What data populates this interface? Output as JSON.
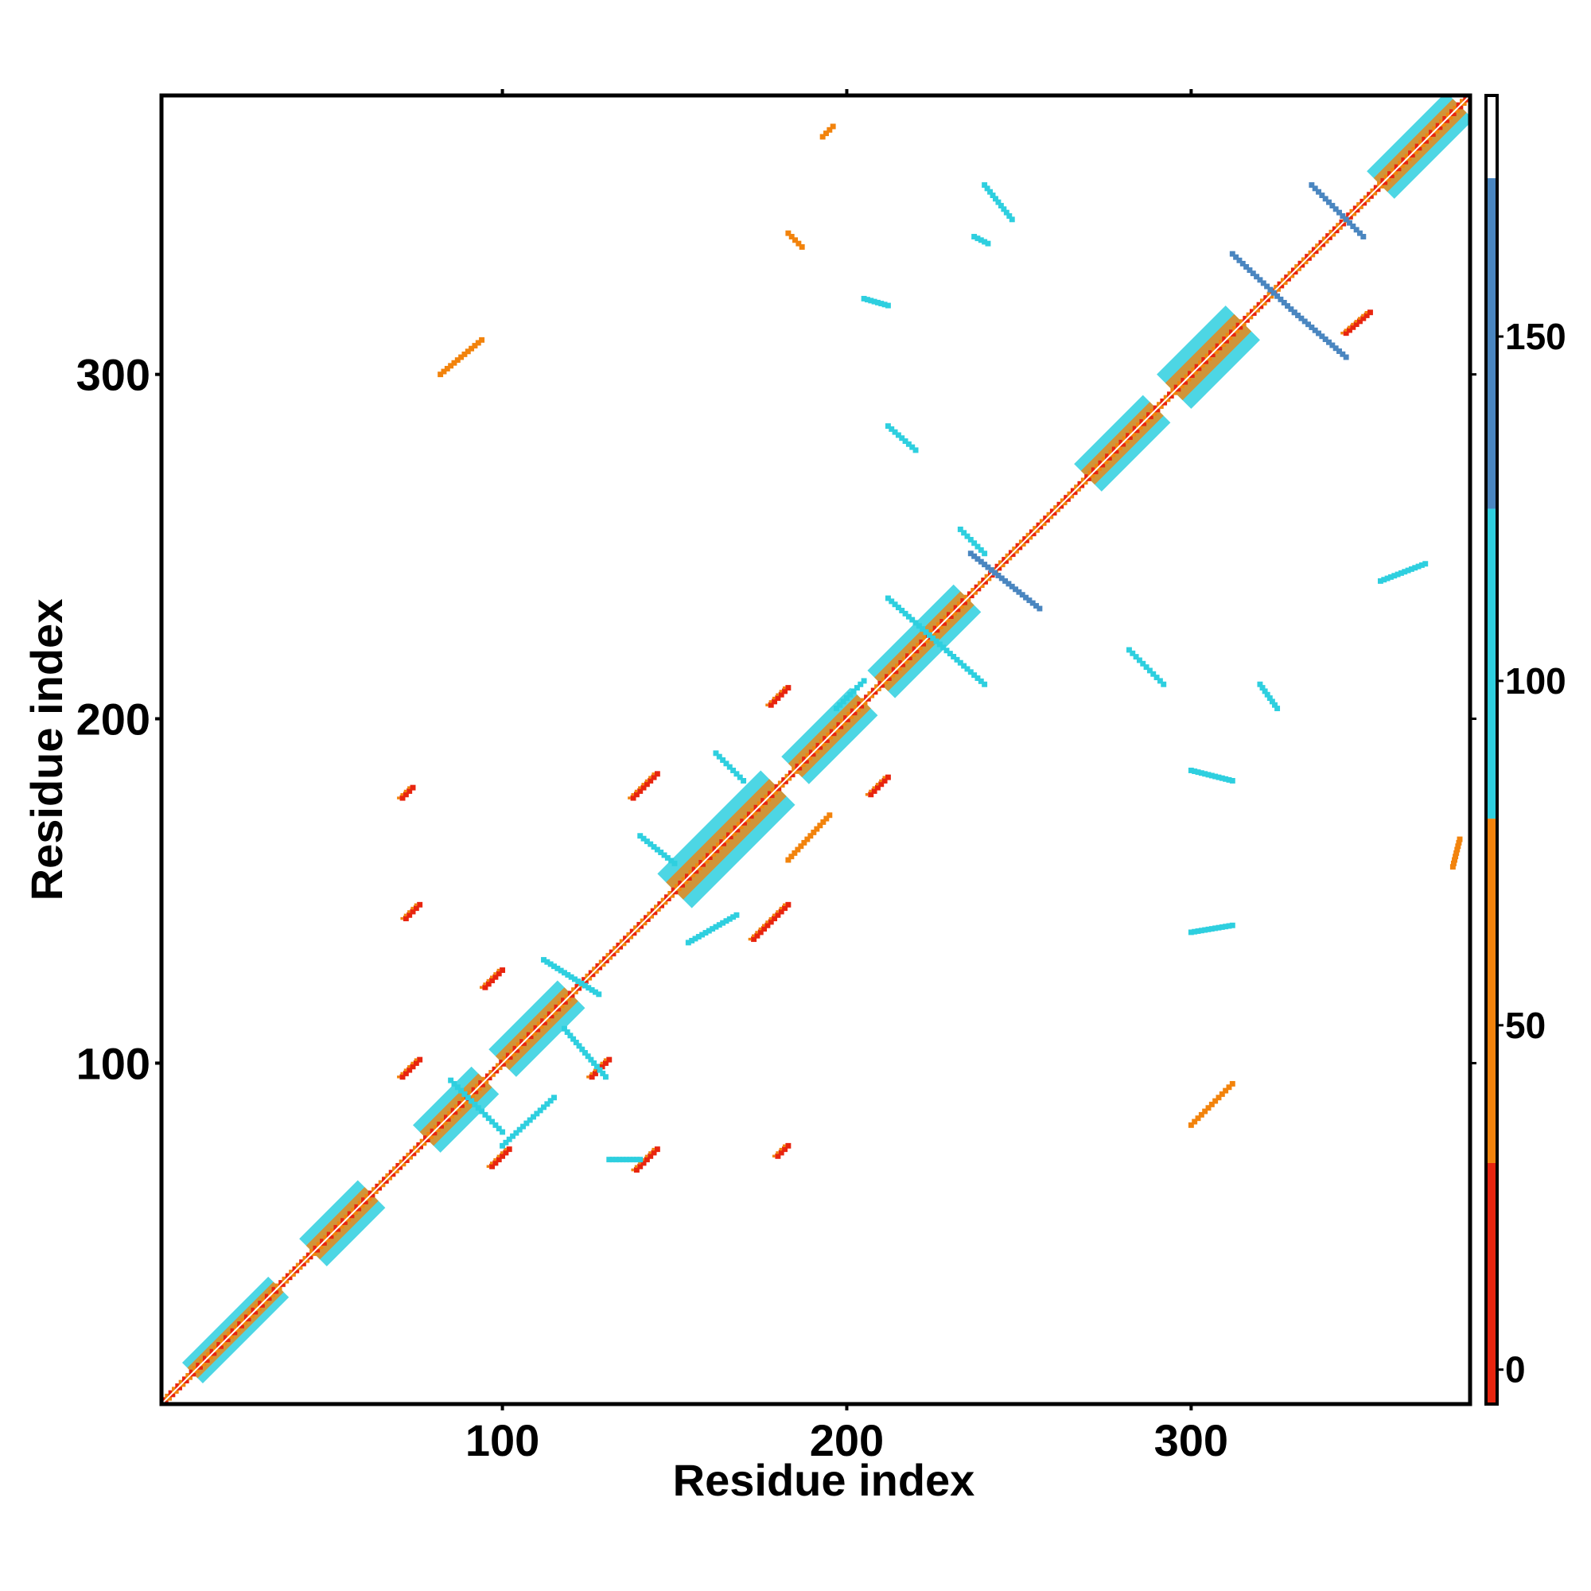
{
  "chart_data": {
    "type": "heatmap",
    "title": "",
    "xlabel": "Residue index",
    "ylabel": "Residue index",
    "xlim": [
      1,
      381
    ],
    "ylim": [
      1,
      381
    ],
    "x_ticks": [
      "100",
      "200",
      "300"
    ],
    "y_ticks": [
      "100",
      "200",
      "300"
    ],
    "x_tick_values": [
      100,
      200,
      300
    ],
    "y_tick_values": [
      100,
      200,
      300
    ],
    "colorbar": {
      "range": [
        -5,
        185
      ],
      "ticks": [
        "0",
        "50",
        "100",
        "150"
      ],
      "tick_values": [
        0,
        50,
        100,
        150
      ],
      "bands": [
        {
          "from": -5,
          "to": 30,
          "color": "#e8250f"
        },
        {
          "from": 30,
          "to": 80,
          "color": "#f2830c"
        },
        {
          "from": 80,
          "to": 125,
          "color": "#2ecfdf"
        },
        {
          "from": 125,
          "to": 173,
          "color": "#4a86c0"
        },
        {
          "from": 173,
          "to": 185,
          "color": "#ffffff"
        }
      ]
    },
    "colors": {
      "red": "#e8250f",
      "orange": "#f2830c",
      "cyan": "#2ecfdf",
      "blue": "#4a86c0",
      "background": "#ffffff"
    },
    "diagonal": {
      "from": 1,
      "to": 381,
      "colors": [
        "#e8250f",
        "#f2830c",
        "#2ecfdf"
      ]
    },
    "diagonal_bands": [
      {
        "from": 10,
        "to": 35,
        "half_width": 3,
        "color": "#2ecfdf"
      },
      {
        "from": 45,
        "to": 62,
        "half_width": 4,
        "color": "#2ecfdf"
      },
      {
        "from": 78,
        "to": 95,
        "half_width": 4,
        "color": "#2ecfdf"
      },
      {
        "from": 100,
        "to": 120,
        "half_width": 4,
        "color": "#2ecfdf"
      },
      {
        "from": 150,
        "to": 180,
        "half_width": 5,
        "color": "#2ecfdf"
      },
      {
        "from": 185,
        "to": 205,
        "half_width": 4,
        "color": "#2ecfdf"
      },
      {
        "from": 210,
        "to": 235,
        "half_width": 4,
        "color": "#2ecfdf"
      },
      {
        "from": 270,
        "to": 290,
        "half_width": 4,
        "color": "#2ecfdf"
      },
      {
        "from": 295,
        "to": 315,
        "half_width": 5,
        "color": "#2ecfdf"
      },
      {
        "from": 355,
        "to": 378,
        "half_width": 4,
        "color": "#2ecfdf"
      }
    ],
    "contact_segments": [
      {
        "x1": 72,
        "y1": 142,
        "x2": 76,
        "y2": 146,
        "color": "#e8250f"
      },
      {
        "x1": 71,
        "y1": 96,
        "x2": 76,
        "y2": 101,
        "color": "#e8250f"
      },
      {
        "x1": 97,
        "y1": 70,
        "x2": 102,
        "y2": 75,
        "color": "#e8250f"
      },
      {
        "x1": 95,
        "y1": 122,
        "x2": 100,
        "y2": 127,
        "color": "#e8250f"
      },
      {
        "x1": 126,
        "y1": 96,
        "x2": 131,
        "y2": 101,
        "color": "#e8250f"
      },
      {
        "x1": 139,
        "y1": 69,
        "x2": 145,
        "y2": 75,
        "color": "#e8250f"
      },
      {
        "x1": 138,
        "y1": 177,
        "x2": 145,
        "y2": 184,
        "color": "#e8250f"
      },
      {
        "x1": 173,
        "y1": 136,
        "x2": 183,
        "y2": 146,
        "color": "#e8250f"
      },
      {
        "x1": 178,
        "y1": 204,
        "x2": 183,
        "y2": 209,
        "color": "#e8250f"
      },
      {
        "x1": 207,
        "y1": 178,
        "x2": 212,
        "y2": 183,
        "color": "#e8250f"
      },
      {
        "x1": 180,
        "y1": 73,
        "x2": 183,
        "y2": 76,
        "color": "#e8250f"
      },
      {
        "x1": 71,
        "y1": 177,
        "x2": 74,
        "y2": 180,
        "color": "#e8250f"
      },
      {
        "x1": 197,
        "y1": 203,
        "x2": 205,
        "y2": 211,
        "color": "#2ecfdf"
      },
      {
        "x1": 162,
        "y1": 190,
        "x2": 170,
        "y2": 182,
        "color": "#2ecfdf"
      },
      {
        "x1": 82,
        "y1": 300,
        "x2": 94,
        "y2": 310,
        "color": "#f2830c"
      },
      {
        "x1": 300,
        "y1": 82,
        "x2": 312,
        "y2": 94,
        "color": "#f2830c"
      },
      {
        "x1": 312,
        "y1": 335,
        "x2": 330,
        "y2": 318,
        "color": "#4a86c0"
      },
      {
        "x1": 330,
        "y1": 318,
        "x2": 345,
        "y2": 305,
        "color": "#4a86c0"
      },
      {
        "x1": 335,
        "y1": 355,
        "x2": 350,
        "y2": 340,
        "color": "#4a86c0"
      },
      {
        "x1": 236,
        "y1": 248,
        "x2": 256,
        "y2": 232,
        "color": "#4a86c0"
      },
      {
        "x1": 233,
        "y1": 255,
        "x2": 240,
        "y2": 248,
        "color": "#2ecfdf"
      },
      {
        "x1": 212,
        "y1": 235,
        "x2": 240,
        "y2": 210,
        "color": "#2ecfdf"
      },
      {
        "x1": 205,
        "y1": 322,
        "x2": 212,
        "y2": 320,
        "color": "#2ecfdf"
      },
      {
        "x1": 240,
        "y1": 355,
        "x2": 248,
        "y2": 345,
        "color": "#2ecfdf"
      },
      {
        "x1": 355,
        "y1": 240,
        "x2": 368,
        "y2": 245,
        "color": "#2ecfdf"
      },
      {
        "x1": 320,
        "y1": 210,
        "x2": 325,
        "y2": 203,
        "color": "#2ecfdf"
      },
      {
        "x1": 282,
        "y1": 220,
        "x2": 292,
        "y2": 210,
        "color": "#2ecfdf"
      },
      {
        "x1": 212,
        "y1": 285,
        "x2": 220,
        "y2": 278,
        "color": "#2ecfdf"
      },
      {
        "x1": 237,
        "y1": 340,
        "x2": 241,
        "y2": 338,
        "color": "#2ecfdf"
      },
      {
        "x1": 345,
        "y1": 312,
        "x2": 352,
        "y2": 318,
        "color": "#e8250f"
      },
      {
        "x1": 300,
        "y1": 138,
        "x2": 312,
        "y2": 140,
        "color": "#2ecfdf"
      },
      {
        "x1": 300,
        "y1": 185,
        "x2": 312,
        "y2": 182,
        "color": "#2ecfdf"
      },
      {
        "x1": 376,
        "y1": 157,
        "x2": 378,
        "y2": 165,
        "color": "#f2830c"
      },
      {
        "x1": 183,
        "y1": 159,
        "x2": 195,
        "y2": 172,
        "color": "#f2830c"
      },
      {
        "x1": 183,
        "y1": 341,
        "x2": 187,
        "y2": 337,
        "color": "#f2830c"
      },
      {
        "x1": 193,
        "y1": 369,
        "x2": 196,
        "y2": 372,
        "color": "#f2830c"
      },
      {
        "x1": 154,
        "y1": 135,
        "x2": 168,
        "y2": 143,
        "color": "#2ecfdf"
      },
      {
        "x1": 140,
        "y1": 166,
        "x2": 150,
        "y2": 158,
        "color": "#2ecfdf"
      },
      {
        "x1": 112,
        "y1": 130,
        "x2": 128,
        "y2": 120,
        "color": "#2ecfdf"
      },
      {
        "x1": 118,
        "y1": 110,
        "x2": 130,
        "y2": 96,
        "color": "#2ecfdf"
      },
      {
        "x1": 85,
        "y1": 95,
        "x2": 100,
        "y2": 80,
        "color": "#2ecfdf"
      },
      {
        "x1": 100,
        "y1": 76,
        "x2": 115,
        "y2": 90,
        "color": "#2ecfdf"
      },
      {
        "x1": 131,
        "y1": 72,
        "x2": 140,
        "y2": 72,
        "color": "#2ecfdf"
      }
    ]
  }
}
